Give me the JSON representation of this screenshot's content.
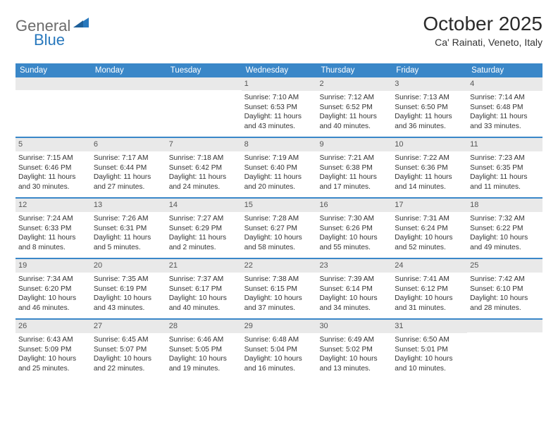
{
  "logo": {
    "general": "General",
    "blue": "Blue"
  },
  "title": "October 2025",
  "subtitle": "Ca' Rainati, Veneto, Italy",
  "colors": {
    "header_bg": "#3a87c8",
    "header_text": "#ffffff",
    "daynum_bg": "#e9e9e9",
    "daynum_text": "#555555",
    "body_text": "#333333",
    "logo_general": "#6b6b6b",
    "logo_blue": "#2878bd",
    "week_divider": "#3a87c8"
  },
  "weekdays": [
    "Sunday",
    "Monday",
    "Tuesday",
    "Wednesday",
    "Thursday",
    "Friday",
    "Saturday"
  ],
  "weeks": [
    [
      {
        "n": "",
        "sr": "",
        "ss": "",
        "dl": ""
      },
      {
        "n": "",
        "sr": "",
        "ss": "",
        "dl": ""
      },
      {
        "n": "",
        "sr": "",
        "ss": "",
        "dl": ""
      },
      {
        "n": "1",
        "sr": "Sunrise: 7:10 AM",
        "ss": "Sunset: 6:53 PM",
        "dl": "Daylight: 11 hours and 43 minutes."
      },
      {
        "n": "2",
        "sr": "Sunrise: 7:12 AM",
        "ss": "Sunset: 6:52 PM",
        "dl": "Daylight: 11 hours and 40 minutes."
      },
      {
        "n": "3",
        "sr": "Sunrise: 7:13 AM",
        "ss": "Sunset: 6:50 PM",
        "dl": "Daylight: 11 hours and 36 minutes."
      },
      {
        "n": "4",
        "sr": "Sunrise: 7:14 AM",
        "ss": "Sunset: 6:48 PM",
        "dl": "Daylight: 11 hours and 33 minutes."
      }
    ],
    [
      {
        "n": "5",
        "sr": "Sunrise: 7:15 AM",
        "ss": "Sunset: 6:46 PM",
        "dl": "Daylight: 11 hours and 30 minutes."
      },
      {
        "n": "6",
        "sr": "Sunrise: 7:17 AM",
        "ss": "Sunset: 6:44 PM",
        "dl": "Daylight: 11 hours and 27 minutes."
      },
      {
        "n": "7",
        "sr": "Sunrise: 7:18 AM",
        "ss": "Sunset: 6:42 PM",
        "dl": "Daylight: 11 hours and 24 minutes."
      },
      {
        "n": "8",
        "sr": "Sunrise: 7:19 AM",
        "ss": "Sunset: 6:40 PM",
        "dl": "Daylight: 11 hours and 20 minutes."
      },
      {
        "n": "9",
        "sr": "Sunrise: 7:21 AM",
        "ss": "Sunset: 6:38 PM",
        "dl": "Daylight: 11 hours and 17 minutes."
      },
      {
        "n": "10",
        "sr": "Sunrise: 7:22 AM",
        "ss": "Sunset: 6:36 PM",
        "dl": "Daylight: 11 hours and 14 minutes."
      },
      {
        "n": "11",
        "sr": "Sunrise: 7:23 AM",
        "ss": "Sunset: 6:35 PM",
        "dl": "Daylight: 11 hours and 11 minutes."
      }
    ],
    [
      {
        "n": "12",
        "sr": "Sunrise: 7:24 AM",
        "ss": "Sunset: 6:33 PM",
        "dl": "Daylight: 11 hours and 8 minutes."
      },
      {
        "n": "13",
        "sr": "Sunrise: 7:26 AM",
        "ss": "Sunset: 6:31 PM",
        "dl": "Daylight: 11 hours and 5 minutes."
      },
      {
        "n": "14",
        "sr": "Sunrise: 7:27 AM",
        "ss": "Sunset: 6:29 PM",
        "dl": "Daylight: 11 hours and 2 minutes."
      },
      {
        "n": "15",
        "sr": "Sunrise: 7:28 AM",
        "ss": "Sunset: 6:27 PM",
        "dl": "Daylight: 10 hours and 58 minutes."
      },
      {
        "n": "16",
        "sr": "Sunrise: 7:30 AM",
        "ss": "Sunset: 6:26 PM",
        "dl": "Daylight: 10 hours and 55 minutes."
      },
      {
        "n": "17",
        "sr": "Sunrise: 7:31 AM",
        "ss": "Sunset: 6:24 PM",
        "dl": "Daylight: 10 hours and 52 minutes."
      },
      {
        "n": "18",
        "sr": "Sunrise: 7:32 AM",
        "ss": "Sunset: 6:22 PM",
        "dl": "Daylight: 10 hours and 49 minutes."
      }
    ],
    [
      {
        "n": "19",
        "sr": "Sunrise: 7:34 AM",
        "ss": "Sunset: 6:20 PM",
        "dl": "Daylight: 10 hours and 46 minutes."
      },
      {
        "n": "20",
        "sr": "Sunrise: 7:35 AM",
        "ss": "Sunset: 6:19 PM",
        "dl": "Daylight: 10 hours and 43 minutes."
      },
      {
        "n": "21",
        "sr": "Sunrise: 7:37 AM",
        "ss": "Sunset: 6:17 PM",
        "dl": "Daylight: 10 hours and 40 minutes."
      },
      {
        "n": "22",
        "sr": "Sunrise: 7:38 AM",
        "ss": "Sunset: 6:15 PM",
        "dl": "Daylight: 10 hours and 37 minutes."
      },
      {
        "n": "23",
        "sr": "Sunrise: 7:39 AM",
        "ss": "Sunset: 6:14 PM",
        "dl": "Daylight: 10 hours and 34 minutes."
      },
      {
        "n": "24",
        "sr": "Sunrise: 7:41 AM",
        "ss": "Sunset: 6:12 PM",
        "dl": "Daylight: 10 hours and 31 minutes."
      },
      {
        "n": "25",
        "sr": "Sunrise: 7:42 AM",
        "ss": "Sunset: 6:10 PM",
        "dl": "Daylight: 10 hours and 28 minutes."
      }
    ],
    [
      {
        "n": "26",
        "sr": "Sunrise: 6:43 AM",
        "ss": "Sunset: 5:09 PM",
        "dl": "Daylight: 10 hours and 25 minutes."
      },
      {
        "n": "27",
        "sr": "Sunrise: 6:45 AM",
        "ss": "Sunset: 5:07 PM",
        "dl": "Daylight: 10 hours and 22 minutes."
      },
      {
        "n": "28",
        "sr": "Sunrise: 6:46 AM",
        "ss": "Sunset: 5:05 PM",
        "dl": "Daylight: 10 hours and 19 minutes."
      },
      {
        "n": "29",
        "sr": "Sunrise: 6:48 AM",
        "ss": "Sunset: 5:04 PM",
        "dl": "Daylight: 10 hours and 16 minutes."
      },
      {
        "n": "30",
        "sr": "Sunrise: 6:49 AM",
        "ss": "Sunset: 5:02 PM",
        "dl": "Daylight: 10 hours and 13 minutes."
      },
      {
        "n": "31",
        "sr": "Sunrise: 6:50 AM",
        "ss": "Sunset: 5:01 PM",
        "dl": "Daylight: 10 hours and 10 minutes."
      },
      {
        "n": "",
        "sr": "",
        "ss": "",
        "dl": ""
      }
    ]
  ]
}
